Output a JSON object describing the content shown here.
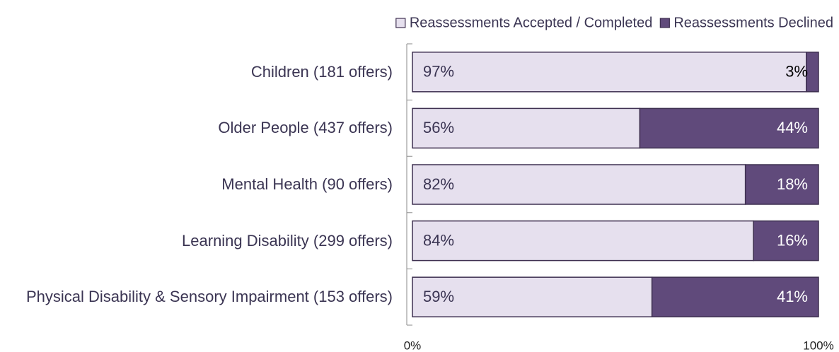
{
  "chart_data": {
    "type": "stacked_barh",
    "categories": [
      "Children (181 offers)",
      "Older People (437 offers)",
      "Mental Health (90 offers)",
      "Learning Disability (299 offers)",
      "Physical Disability & Sensory Impairment (153 offers)"
    ],
    "series": [
      {
        "name": "Reassessments Accepted / Completed",
        "color": "#e6e0ee",
        "values": [
          97,
          56,
          82,
          84,
          59
        ],
        "value_labels": [
          "97%",
          "56%",
          "82%",
          "84%",
          "59%"
        ]
      },
      {
        "name": "Reassessments Declined",
        "color": "#604a7b",
        "values": [
          3,
          44,
          18,
          16,
          41
        ],
        "value_labels": [
          "3%",
          "44%",
          "18%",
          "16%",
          "41%"
        ]
      }
    ],
    "xlim": [
      0,
      100
    ],
    "xticks": [
      {
        "value": 0,
        "label": "0%"
      },
      {
        "value": 100,
        "label": "100%"
      }
    ],
    "legend": "top-right"
  }
}
